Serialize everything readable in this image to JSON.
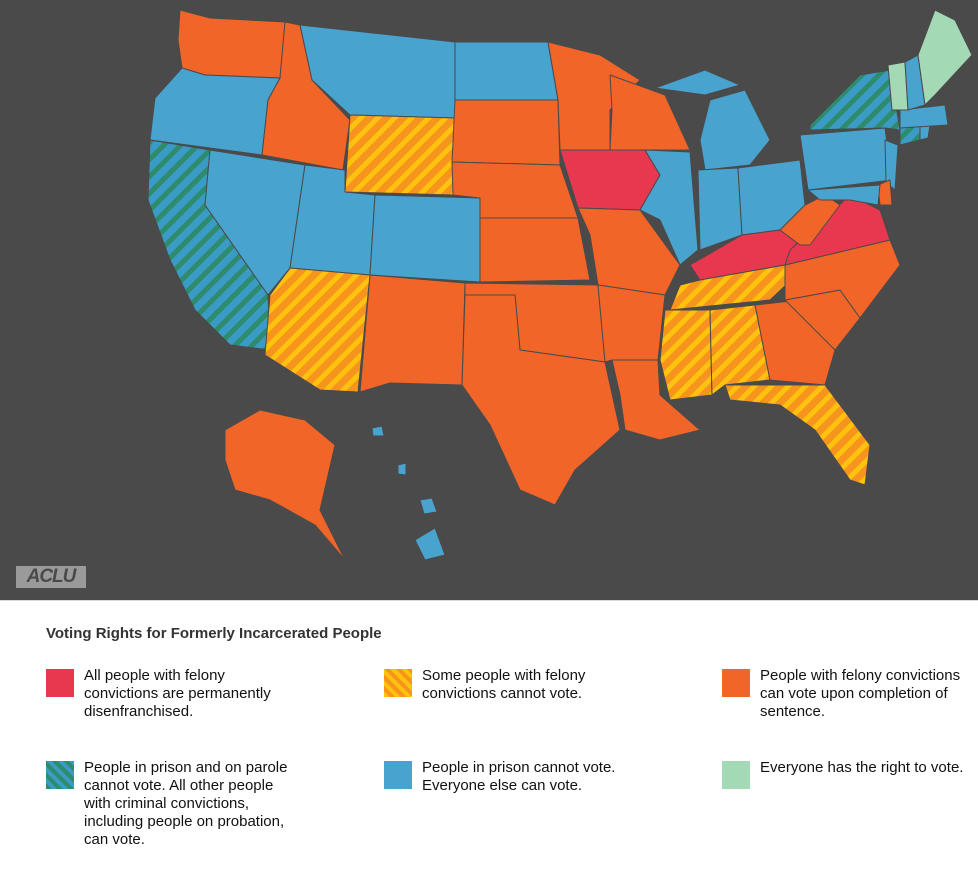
{
  "title": "Voting Rights for Formerly Incarcerated People",
  "logo": "ACLU",
  "colors": {
    "background": "#4a4a4a",
    "permanent": "#e8384f",
    "some": "#f7941d",
    "some_stripe": "#ffc20e",
    "completion": "#f26529",
    "prison_parole": "#3a9bc7",
    "prison_parole_stripe": "#2e8b6b",
    "prison_only": "#49a3cf",
    "everyone": "#a3d9b5"
  },
  "legend": [
    {
      "key": "permanent",
      "label": "All people with felony convictions are permanently disenfranchised.",
      "swatch_color": "#e8384f"
    },
    {
      "key": "some",
      "label": "Some people with felony convictions cannot vote.",
      "swatch_color": "#f7941d"
    },
    {
      "key": "completion",
      "label": "People with felony convictions can vote upon completion of sentence.",
      "swatch_color": "#f26529"
    },
    {
      "key": "prison_parole",
      "label": "People in prison and on parole cannot vote. All other people with criminal convictions, including people on probation, can vote.",
      "swatch_color": "#3a9bc7"
    },
    {
      "key": "prison_only",
      "label": "People in prison cannot vote. Everyone else can vote.",
      "swatch_color": "#49a3cf"
    },
    {
      "key": "everyone",
      "label": "Everyone has the right to vote.",
      "swatch_color": "#a3d9b5"
    }
  ],
  "states": [
    {
      "id": "WA",
      "category": "completion"
    },
    {
      "id": "OR",
      "category": "prison_only"
    },
    {
      "id": "CA",
      "category": "prison_parole"
    },
    {
      "id": "NV",
      "category": "prison_only"
    },
    {
      "id": "ID",
      "category": "completion"
    },
    {
      "id": "MT",
      "category": "prison_only"
    },
    {
      "id": "WY",
      "category": "some"
    },
    {
      "id": "UT",
      "category": "prison_only"
    },
    {
      "id": "CO",
      "category": "prison_only"
    },
    {
      "id": "AZ",
      "category": "some"
    },
    {
      "id": "NM",
      "category": "completion"
    },
    {
      "id": "ND",
      "category": "prison_only"
    },
    {
      "id": "SD",
      "category": "completion"
    },
    {
      "id": "NE",
      "category": "completion"
    },
    {
      "id": "KS",
      "category": "completion"
    },
    {
      "id": "OK",
      "category": "completion"
    },
    {
      "id": "TX",
      "category": "completion"
    },
    {
      "id": "MN",
      "category": "completion"
    },
    {
      "id": "IA",
      "category": "permanent"
    },
    {
      "id": "MO",
      "category": "completion"
    },
    {
      "id": "AR",
      "category": "completion"
    },
    {
      "id": "LA",
      "category": "completion"
    },
    {
      "id": "WI",
      "category": "completion"
    },
    {
      "id": "IL",
      "category": "prison_only"
    },
    {
      "id": "MI",
      "category": "prison_only"
    },
    {
      "id": "IN",
      "category": "prison_only"
    },
    {
      "id": "OH",
      "category": "prison_only"
    },
    {
      "id": "KY",
      "category": "permanent"
    },
    {
      "id": "TN",
      "category": "some"
    },
    {
      "id": "MS",
      "category": "some"
    },
    {
      "id": "AL",
      "category": "some"
    },
    {
      "id": "GA",
      "category": "completion"
    },
    {
      "id": "FL",
      "category": "some"
    },
    {
      "id": "SC",
      "category": "completion"
    },
    {
      "id": "NC",
      "category": "completion"
    },
    {
      "id": "VA",
      "category": "permanent"
    },
    {
      "id": "WV",
      "category": "completion"
    },
    {
      "id": "PA",
      "category": "prison_only"
    },
    {
      "id": "NY",
      "category": "prison_parole"
    },
    {
      "id": "NJ",
      "category": "prison_only"
    },
    {
      "id": "DE",
      "category": "completion"
    },
    {
      "id": "MD",
      "category": "prison_only"
    },
    {
      "id": "CT",
      "category": "prison_parole"
    },
    {
      "id": "RI",
      "category": "prison_only"
    },
    {
      "id": "MA",
      "category": "prison_only"
    },
    {
      "id": "VT",
      "category": "everyone"
    },
    {
      "id": "NH",
      "category": "prison_only"
    },
    {
      "id": "ME",
      "category": "everyone"
    },
    {
      "id": "AK",
      "category": "completion"
    },
    {
      "id": "HI",
      "category": "prison_only"
    }
  ]
}
